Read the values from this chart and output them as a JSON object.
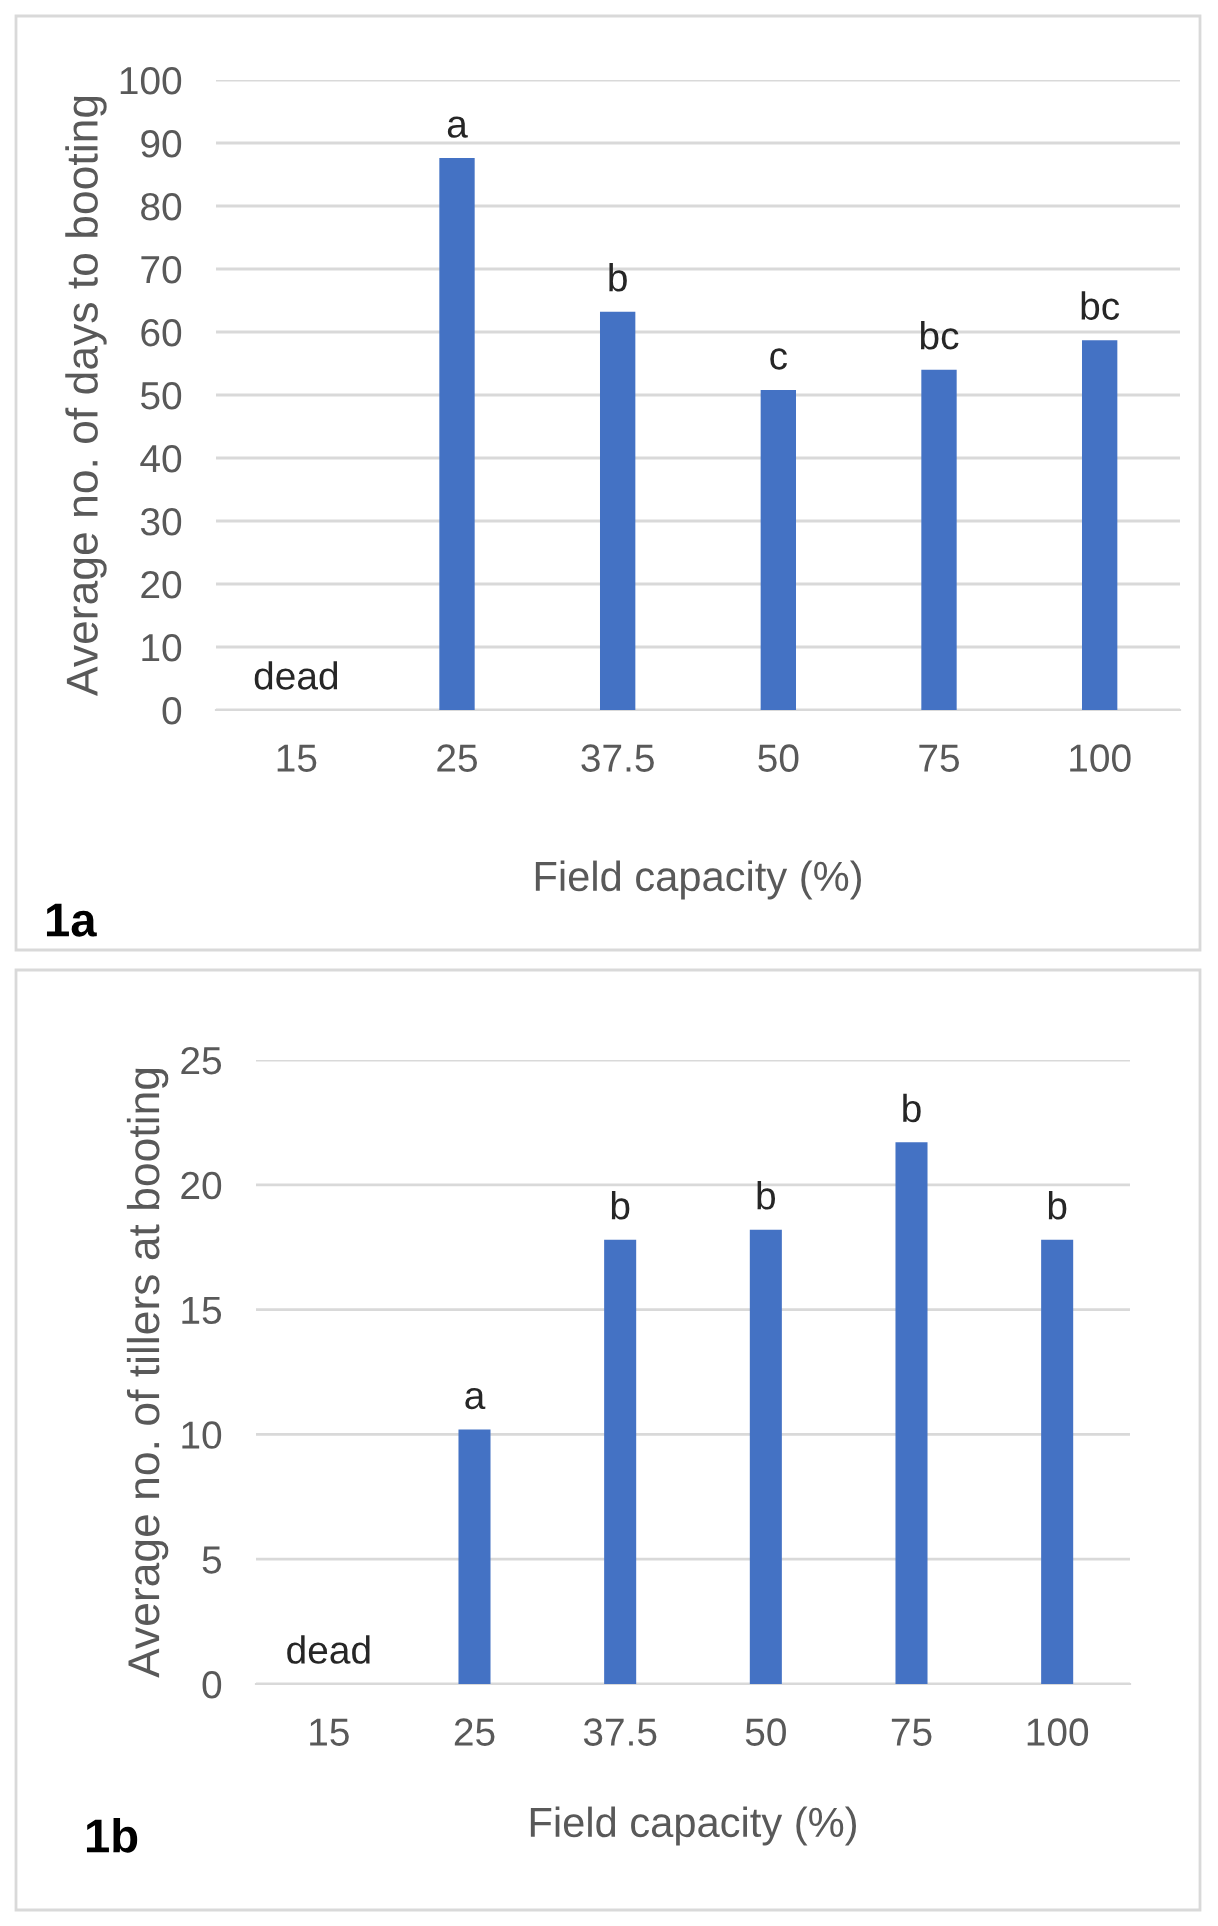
{
  "chart_data": [
    {
      "type": "bar",
      "categories": [
        "15",
        "25",
        "37.5",
        "50",
        "75",
        "100"
      ],
      "values": [
        null,
        87.6,
        63.2,
        50.8,
        54.0,
        58.7
      ],
      "color": "#4472c4",
      "xlabel": "Field capacity (%)",
      "ylabel": "Average no. of days to booting",
      "ylim": [
        0,
        100
      ],
      "yticks": [
        0,
        10,
        20,
        30,
        40,
        50,
        60,
        70,
        80,
        90,
        100
      ],
      "grid": "y",
      "annotations": [
        "dead",
        {
          "text": "a",
          "x": "25",
          "y": 87.6
        },
        {
          "text": "b",
          "x": "37.5",
          "y": 63.2
        },
        {
          "text": "c",
          "x": "50",
          "y": 50.8
        },
        {
          "text": "bc",
          "x": "75",
          "y": 54.0
        },
        {
          "text": "bc",
          "x": "100",
          "y": 58.7
        },
        "1a"
      ]
    },
    {
      "type": "bar",
      "categories": [
        "15",
        "25",
        "37.5",
        "50",
        "75",
        "100"
      ],
      "values": [
        null,
        10.2,
        17.8,
        18.2,
        21.7,
        17.8
      ],
      "color": "#4472c4",
      "xlabel": "Field capacity (%)",
      "ylabel": "Average no. of tillers at booting",
      "ylim": [
        0,
        25
      ],
      "yticks": [
        0,
        5,
        10,
        15,
        20,
        25
      ],
      "grid": "y",
      "annotations": [
        "dead",
        {
          "text": "a",
          "x": "25",
          "y": 10.2
        },
        {
          "text": "b",
          "x": "37.5",
          "y": 17.8
        },
        {
          "text": "b",
          "x": "50",
          "y": 18.2
        },
        {
          "text": "b",
          "x": "75",
          "y": 21.7
        },
        {
          "text": "b",
          "x": "100",
          "y": 17.8
        },
        "1b"
      ]
    }
  ]
}
